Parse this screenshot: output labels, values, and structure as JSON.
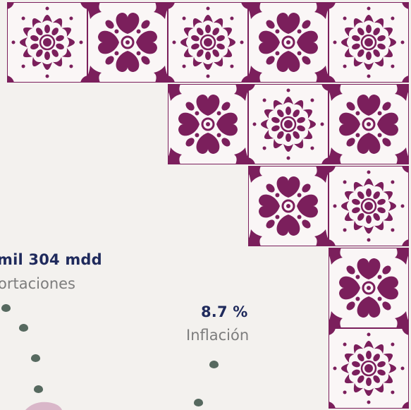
{
  "palette": {
    "background": "#f3f1ee",
    "tile_color": "#7b1f5c",
    "tile_background": "#faf6f6",
    "value_text": "#1f2a5c",
    "label_text": "#7d7d7d",
    "dot_color": "#56695f",
    "blob_color": "#d9b7c9"
  },
  "decor": {
    "tile_icons": [
      "flower-tile-icon",
      "heart-cross-tile-icon"
    ]
  },
  "stats": {
    "exports": {
      "value": "mil 304 mdd",
      "label": "ortaciones"
    },
    "inflation": {
      "value": "8.7 %",
      "label": "Inflación"
    }
  }
}
